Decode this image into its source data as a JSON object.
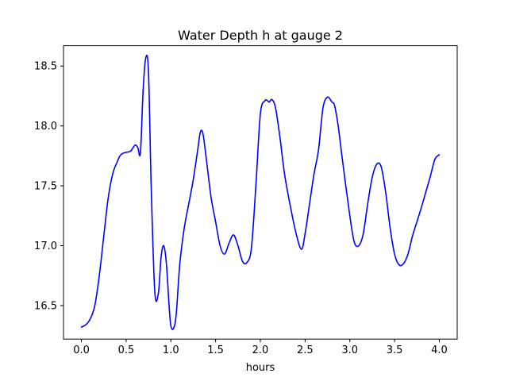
{
  "chart_data": {
    "type": "line",
    "title": "Water Depth h at gauge 2",
    "xlabel": "hours",
    "ylabel": "",
    "xlim": [
      -0.2,
      4.2
    ],
    "ylim": [
      16.22,
      18.67
    ],
    "xticks": [
      0.0,
      0.5,
      1.0,
      1.5,
      2.0,
      2.5,
      3.0,
      3.5,
      4.0
    ],
    "xtick_labels": [
      "0.0",
      "0.5",
      "1.0",
      "1.5",
      "2.0",
      "2.5",
      "3.0",
      "3.5",
      "4.0"
    ],
    "yticks": [
      16.5,
      17.0,
      17.5,
      18.0,
      18.5
    ],
    "ytick_labels": [
      "16.5",
      "17.0",
      "17.5",
      "18.0",
      "18.5"
    ],
    "grid": false,
    "series": [
      {
        "color": "#0000ff",
        "x": [
          0.0,
          0.05,
          0.1,
          0.15,
          0.2,
          0.25,
          0.3,
          0.35,
          0.4,
          0.43,
          0.46,
          0.5,
          0.55,
          0.6,
          0.63,
          0.66,
          0.69,
          0.72,
          0.75,
          0.78,
          0.82,
          0.86,
          0.89,
          0.92,
          0.95,
          0.98,
          1.0,
          1.03,
          1.06,
          1.1,
          1.15,
          1.2,
          1.25,
          1.3,
          1.33,
          1.36,
          1.4,
          1.45,
          1.5,
          1.55,
          1.6,
          1.65,
          1.7,
          1.75,
          1.8,
          1.85,
          1.9,
          1.95,
          2.0,
          2.05,
          2.08,
          2.1,
          2.13,
          2.17,
          2.22,
          2.27,
          2.33,
          2.4,
          2.46,
          2.5,
          2.55,
          2.6,
          2.65,
          2.7,
          2.75,
          2.8,
          2.83,
          2.87,
          2.92,
          3.0,
          3.05,
          3.1,
          3.15,
          3.2,
          3.25,
          3.3,
          3.35,
          3.4,
          3.45,
          3.5,
          3.55,
          3.6,
          3.65,
          3.7,
          3.75,
          3.8,
          3.85,
          3.9,
          3.95,
          4.0
        ],
        "y": [
          16.32,
          16.34,
          16.39,
          16.5,
          16.75,
          17.08,
          17.4,
          17.6,
          17.7,
          17.75,
          17.77,
          17.78,
          17.79,
          17.84,
          17.82,
          17.78,
          18.3,
          18.57,
          18.45,
          17.5,
          16.62,
          16.6,
          16.9,
          17.0,
          16.85,
          16.5,
          16.33,
          16.31,
          16.43,
          16.85,
          17.15,
          17.35,
          17.55,
          17.8,
          17.95,
          17.93,
          17.7,
          17.4,
          17.2,
          17.0,
          16.93,
          17.02,
          17.09,
          17.0,
          16.87,
          16.86,
          16.98,
          17.5,
          18.1,
          18.21,
          18.21,
          18.2,
          18.22,
          18.15,
          17.9,
          17.6,
          17.35,
          17.1,
          16.97,
          17.1,
          17.35,
          17.6,
          17.8,
          18.15,
          18.24,
          18.2,
          18.17,
          18.0,
          17.7,
          17.25,
          17.03,
          17.0,
          17.1,
          17.35,
          17.57,
          17.68,
          17.66,
          17.45,
          17.15,
          16.93,
          16.84,
          16.85,
          16.93,
          17.08,
          17.2,
          17.32,
          17.45,
          17.58,
          17.72,
          17.76
        ]
      }
    ]
  }
}
